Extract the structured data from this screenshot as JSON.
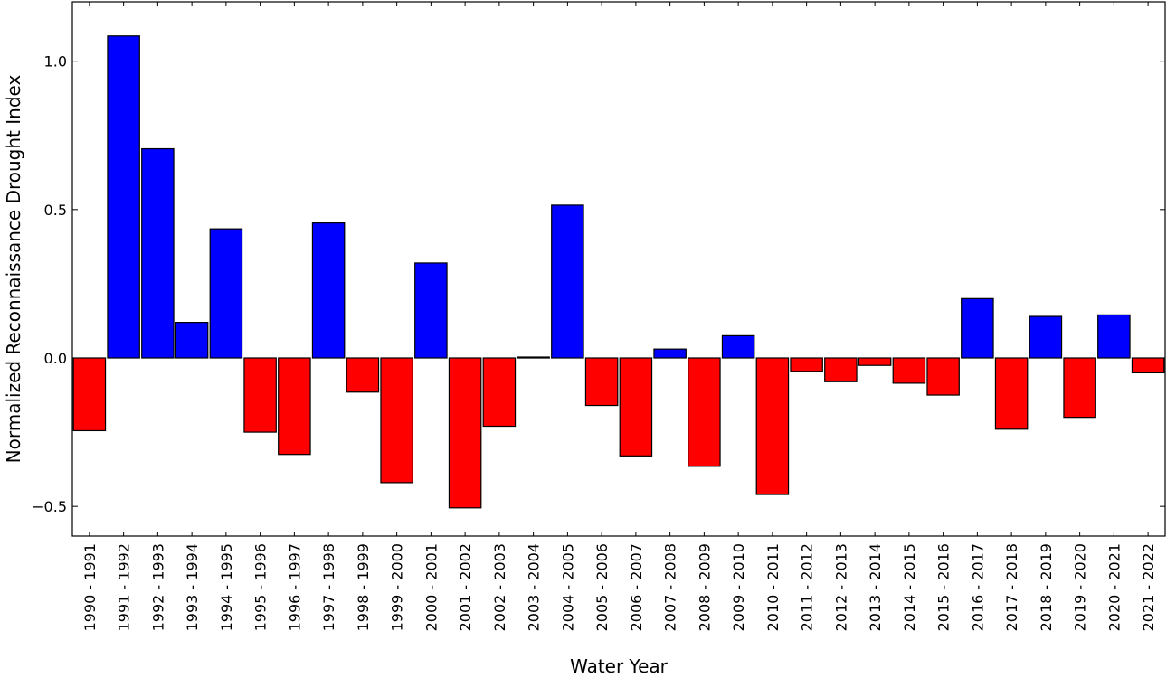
{
  "chart_data": {
    "type": "bar",
    "title": "",
    "xlabel": "Water Year",
    "ylabel": "Normalized Reconnaissance Drought Index",
    "ylim": [
      -0.6,
      1.2
    ],
    "yticks": [
      -0.5,
      0.0,
      0.5,
      1.0
    ],
    "ytick_labels": [
      "−0.5",
      "0.0",
      "0.5",
      "1.0"
    ],
    "grid": false,
    "legend": "none",
    "colors": {
      "positive": "#0000ff",
      "negative": "#ff0000",
      "edge": "#000000"
    },
    "categories": [
      "1990 - 1991",
      "1991 - 1992",
      "1992 - 1993",
      "1993 - 1994",
      "1994 - 1995",
      "1995 - 1996",
      "1996 - 1997",
      "1997 - 1998",
      "1998 - 1999",
      "1999 - 2000",
      "2000 - 2001",
      "2001 - 2002",
      "2002 - 2003",
      "2003 - 2004",
      "2004 - 2005",
      "2005 - 2006",
      "2006 - 2007",
      "2007 - 2008",
      "2008 - 2009",
      "2009 - 2010",
      "2010 - 2011",
      "2011 - 2012",
      "2012 - 2013",
      "2013 - 2014",
      "2014 - 2015",
      "2015 - 2016",
      "2016 - 2017",
      "2017 - 2018",
      "2018 - 2019",
      "2019 - 2020",
      "2020 - 2021",
      "2021 - 2022"
    ],
    "values": [
      -0.245,
      1.085,
      0.705,
      0.12,
      0.435,
      -0.25,
      -0.325,
      0.455,
      -0.115,
      -0.42,
      0.32,
      -0.505,
      -0.23,
      0.003,
      0.515,
      -0.16,
      -0.33,
      0.03,
      -0.365,
      0.075,
      -0.46,
      -0.045,
      -0.08,
      -0.025,
      -0.085,
      -0.125,
      0.2,
      -0.24,
      0.14,
      -0.2,
      0.145,
      -0.05
    ]
  }
}
